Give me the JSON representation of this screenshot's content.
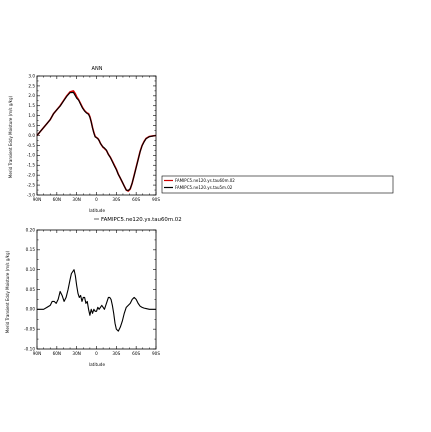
{
  "chart_data": [
    {
      "type": "line",
      "title": "ANN",
      "xlabel": "latitude",
      "ylabel": "Merid Transient Eddy Moisture (m/s g/kg)",
      "x_ticks": [
        90,
        60,
        30,
        0,
        -30,
        -60,
        -90
      ],
      "x_tick_labels": [
        "90N",
        "60N",
        "30N",
        "0",
        "30S",
        "60S",
        "90S"
      ],
      "xlim": [
        90,
        -90
      ],
      "y_ticks": [
        -3.0,
        -2.5,
        -2.0,
        -1.5,
        -1.0,
        -0.5,
        0.0,
        0.5,
        1.0,
        1.5,
        2.0,
        2.5,
        3.0
      ],
      "y_tick_labels": [
        "-3.0",
        "-2.5",
        "-2.0",
        "-1.5",
        "-1.0",
        "-0.5",
        "0.0",
        "0.5",
        "1.0",
        "1.5",
        "2.0",
        "2.5",
        "3.0"
      ],
      "ylim": [
        -3.0,
        3.0
      ],
      "grid": false,
      "legend_position": "right",
      "series": [
        {
          "name": "FAMIPC5.ne120.ys.tau60m.02",
          "color": "#cc0000",
          "x": [
            90,
            85,
            80,
            75,
            70,
            65,
            60,
            55,
            50,
            45,
            40,
            35,
            32,
            30,
            27,
            24,
            21,
            18,
            15,
            12,
            10,
            8,
            6,
            4,
            2,
            0,
            -2,
            -4,
            -6,
            -8,
            -10,
            -12,
            -15,
            -18,
            -21,
            -24,
            -27,
            -30,
            -33,
            -36,
            -39,
            -42,
            -45,
            -48,
            -51,
            -54,
            -57,
            -60,
            -63,
            -66,
            -69,
            -72,
            -75,
            -80,
            -85,
            -90
          ],
          "y": [
            0.0,
            0.2,
            0.4,
            0.6,
            0.8,
            1.1,
            1.3,
            1.5,
            1.75,
            2.0,
            2.2,
            2.25,
            2.1,
            1.95,
            1.8,
            1.6,
            1.4,
            1.25,
            1.15,
            1.1,
            0.95,
            0.7,
            0.4,
            0.15,
            -0.05,
            -0.1,
            -0.15,
            -0.25,
            -0.4,
            -0.5,
            -0.6,
            -0.65,
            -0.75,
            -0.95,
            -1.1,
            -1.3,
            -1.5,
            -1.7,
            -1.95,
            -2.15,
            -2.35,
            -2.55,
            -2.75,
            -2.8,
            -2.7,
            -2.4,
            -2.0,
            -1.6,
            -1.2,
            -0.8,
            -0.5,
            -0.3,
            -0.15,
            -0.05,
            -0.02,
            0.0
          ]
        },
        {
          "name": "FAMIPC5.ne120.ys.tau5m.02",
          "color": "#000000",
          "x": [
            90,
            85,
            80,
            75,
            70,
            65,
            60,
            55,
            50,
            45,
            40,
            35,
            32,
            30,
            27,
            24,
            21,
            18,
            15,
            12,
            10,
            8,
            6,
            4,
            2,
            0,
            -2,
            -4,
            -6,
            -8,
            -10,
            -12,
            -15,
            -18,
            -21,
            -24,
            -27,
            -30,
            -33,
            -36,
            -39,
            -42,
            -45,
            -48,
            -51,
            -54,
            -57,
            -60,
            -63,
            -66,
            -69,
            -72,
            -75,
            -80,
            -85,
            -90
          ],
          "y": [
            0.0,
            0.2,
            0.4,
            0.6,
            0.8,
            1.1,
            1.3,
            1.48,
            1.73,
            1.97,
            2.16,
            2.17,
            2.0,
            1.88,
            1.78,
            1.57,
            1.37,
            1.23,
            1.13,
            1.06,
            0.92,
            0.68,
            0.38,
            0.12,
            -0.07,
            -0.11,
            -0.16,
            -0.26,
            -0.4,
            -0.5,
            -0.58,
            -0.63,
            -0.74,
            -0.96,
            -1.11,
            -1.32,
            -1.53,
            -1.72,
            -1.97,
            -2.14,
            -2.34,
            -2.56,
            -2.75,
            -2.77,
            -2.68,
            -2.39,
            -2.02,
            -1.62,
            -1.22,
            -0.82,
            -0.51,
            -0.32,
            -0.16,
            -0.06,
            -0.03,
            0.0
          ]
        }
      ]
    },
    {
      "type": "line",
      "title": "FAMIPC5.ne120.ys.tau60m.02",
      "xlabel": "latitude",
      "ylabel": "Merid Transient Eddy Moisture (m/s g/kg)",
      "x_ticks": [
        90,
        60,
        30,
        0,
        -30,
        -60,
        -90
      ],
      "x_tick_labels": [
        "90N",
        "60N",
        "30N",
        "0",
        "30S",
        "60S",
        "90S"
      ],
      "xlim": [
        90,
        -90
      ],
      "y_ticks": [
        -0.1,
        -0.05,
        0.0,
        0.05,
        0.1,
        0.15,
        0.2
      ],
      "y_tick_labels": [
        "-0.10",
        "-0.05",
        "0.00",
        "0.05",
        "0.10",
        "0.15",
        "0.20"
      ],
      "ylim": [
        -0.1,
        0.2
      ],
      "grid": false,
      "series": [
        {
          "color": "#000000",
          "x": [
            90,
            85,
            80,
            75,
            70,
            67,
            64,
            61,
            58,
            55,
            52,
            49,
            46,
            43,
            40,
            38,
            36,
            34,
            32,
            30,
            28,
            26,
            24,
            22,
            20,
            18,
            16,
            14,
            12,
            10,
            8,
            6,
            4,
            2,
            0,
            -2,
            -4,
            -6,
            -8,
            -10,
            -12,
            -14,
            -16,
            -18,
            -20,
            -22,
            -24,
            -26,
            -28,
            -30,
            -33,
            -36,
            -39,
            -42,
            -45,
            -48,
            -51,
            -54,
            -57,
            -60,
            -63,
            -66,
            -69,
            -72,
            -75,
            -80,
            -85,
            -90
          ],
          "y": [
            0.0,
            0.0,
            0.0,
            0.005,
            0.01,
            0.02,
            0.02,
            0.015,
            0.025,
            0.045,
            0.035,
            0.02,
            0.03,
            0.05,
            0.075,
            0.09,
            0.095,
            0.1,
            0.085,
            0.06,
            0.04,
            0.03,
            0.035,
            0.02,
            0.03,
            0.03,
            0.015,
            0.02,
            0.0,
            -0.015,
            0.0,
            -0.01,
            0.0,
            -0.005,
            -0.005,
            0.005,
            0.0,
            0.005,
            0.01,
            0.005,
            0.0,
            0.01,
            0.02,
            0.03,
            0.03,
            0.025,
            0.01,
            -0.01,
            -0.035,
            -0.05,
            -0.055,
            -0.045,
            -0.03,
            -0.01,
            0.005,
            0.01,
            0.015,
            0.025,
            0.03,
            0.025,
            0.015,
            0.008,
            0.005,
            0.003,
            0.002,
            0.0,
            0.0,
            0.0
          ]
        }
      ]
    }
  ]
}
